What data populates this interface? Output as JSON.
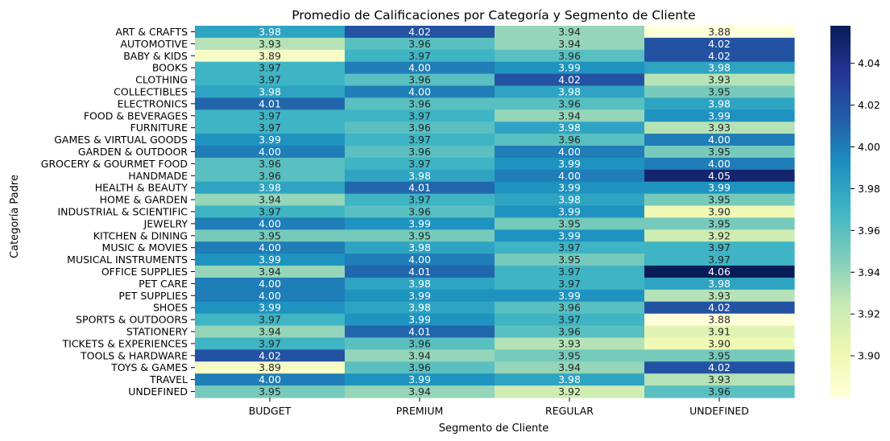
{
  "chart_data": {
    "type": "heatmap",
    "title": "Promedio de Calificaciones por Categoría y Segmento de Cliente",
    "xlabel": "Segmento de Cliente",
    "ylabel": "Categoría Padre",
    "columns": [
      "BUDGET",
      "PREMIUM",
      "REGULAR",
      "UNDEFINED"
    ],
    "rows": [
      "ART & CRAFTS",
      "AUTOMOTIVE",
      "BABY & KIDS",
      "BOOKS",
      "CLOTHING",
      "COLLECTIBLES",
      "ELECTRONICS",
      "FOOD & BEVERAGES",
      "FURNITURE",
      "GAMES & VIRTUAL GOODS",
      "GARDEN & OUTDOOR",
      "GROCERY & GOURMET FOOD",
      "HANDMADE",
      "HEALTH & BEAUTY",
      "HOME & GARDEN",
      "INDUSTRIAL & SCIENTIFIC",
      "JEWELRY",
      "KITCHEN & DINING",
      "MUSIC & MOVIES",
      "MUSICAL INSTRUMENTS",
      "OFFICE SUPPLIES",
      "PET CARE",
      "PET SUPPLIES",
      "SHOES",
      "SPORTS & OUTDOORS",
      "STATIONERY",
      "TICKETS & EXPERIENCES",
      "TOOLS & HARDWARE",
      "TOYS & GAMES",
      "TRAVEL",
      "UNDEFINED"
    ],
    "values": [
      [
        3.98,
        4.02,
        3.94,
        3.88
      ],
      [
        3.93,
        3.96,
        3.94,
        4.02
      ],
      [
        3.89,
        3.97,
        3.96,
        4.02
      ],
      [
        3.97,
        4.0,
        3.99,
        3.98
      ],
      [
        3.97,
        3.96,
        4.02,
        3.93
      ],
      [
        3.98,
        4.0,
        3.98,
        3.95
      ],
      [
        4.01,
        3.96,
        3.96,
        3.98
      ],
      [
        3.97,
        3.97,
        3.94,
        3.99
      ],
      [
        3.97,
        3.96,
        3.98,
        3.93
      ],
      [
        3.99,
        3.97,
        3.96,
        4.0
      ],
      [
        4.0,
        3.96,
        4.0,
        3.95
      ],
      [
        3.96,
        3.97,
        3.99,
        4.0
      ],
      [
        3.96,
        3.98,
        4.0,
        4.05
      ],
      [
        3.98,
        4.01,
        3.99,
        3.99
      ],
      [
        3.94,
        3.97,
        3.98,
        3.95
      ],
      [
        3.97,
        3.96,
        3.99,
        3.9
      ],
      [
        4.0,
        3.99,
        3.95,
        3.95
      ],
      [
        3.95,
        3.95,
        3.99,
        3.92
      ],
      [
        4.0,
        3.98,
        3.97,
        3.97
      ],
      [
        3.99,
        4.0,
        3.95,
        3.97
      ],
      [
        3.94,
        4.01,
        3.97,
        4.06
      ],
      [
        4.0,
        3.98,
        3.97,
        3.98
      ],
      [
        4.0,
        3.99,
        3.99,
        3.93
      ],
      [
        3.99,
        3.98,
        3.96,
        4.02
      ],
      [
        3.97,
        3.99,
        3.97,
        3.88
      ],
      [
        3.94,
        4.01,
        3.96,
        3.91
      ],
      [
        3.97,
        3.96,
        3.93,
        3.9
      ],
      [
        4.02,
        3.94,
        3.95,
        3.95
      ],
      [
        3.89,
        3.96,
        3.94,
        4.02
      ],
      [
        4.0,
        3.99,
        3.98,
        3.93
      ],
      [
        3.95,
        3.94,
        3.92,
        3.96
      ]
    ],
    "colormap": "YlGnBu",
    "colorbar": {
      "range": [
        3.88,
        4.058
      ],
      "ticks": [
        3.9,
        3.92,
        3.94,
        3.96,
        3.98,
        4.0,
        4.02,
        4.04
      ]
    }
  }
}
